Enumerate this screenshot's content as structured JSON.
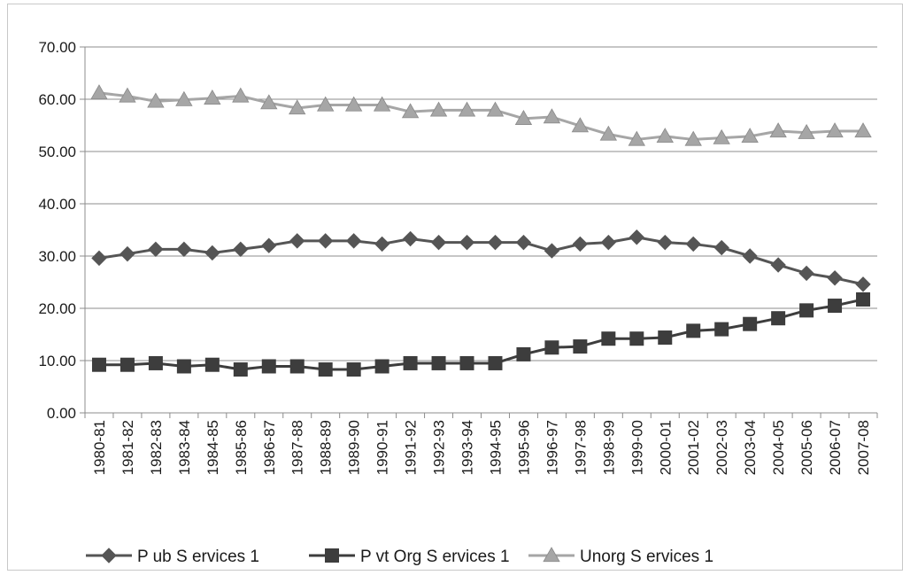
{
  "chart_data": {
    "type": "line",
    "categories": [
      "1980-81",
      "1981-82",
      "1982-83",
      "1983-84",
      "1984-85",
      "1985-86",
      "1986-87",
      "1987-88",
      "1988-89",
      "1989-90",
      "1990-91",
      "1991-92",
      "1992-93",
      "1993-94",
      "1994-95",
      "1995-96",
      "1996-97",
      "1997-98",
      "1998-99",
      "1999-00",
      "2000-01",
      "2001-02",
      "2002-03",
      "2003-04",
      "2004-05",
      "2005-06",
      "2006-07",
      "2007-08"
    ],
    "ylim": [
      0,
      70
    ],
    "yticks": [
      "0.00",
      "10.00",
      "20.00",
      "30.00",
      "40.00",
      "50.00",
      "60.00",
      "70.00"
    ],
    "grid": true,
    "legend_position": "bottom",
    "series": [
      {
        "name": "P ub S ervices 1",
        "marker": "diamond",
        "color": "#555555",
        "values": [
          29.6,
          30.4,
          31.3,
          31.3,
          30.6,
          31.3,
          32.0,
          32.9,
          32.9,
          32.9,
          32.3,
          33.3,
          32.6,
          32.6,
          32.6,
          32.6,
          31.0,
          32.3,
          32.6,
          33.6,
          32.6,
          32.3,
          31.6,
          30.0,
          28.3,
          26.7,
          25.8,
          24.6
        ]
      },
      {
        "name": "P vt Org S ervices 1",
        "marker": "square",
        "color": "#3d3d3d",
        "values": [
          9.2,
          9.2,
          9.5,
          8.9,
          9.2,
          8.3,
          8.9,
          8.9,
          8.3,
          8.3,
          8.9,
          9.5,
          9.5,
          9.5,
          9.5,
          11.2,
          12.5,
          12.7,
          14.2,
          14.2,
          14.4,
          15.7,
          16.0,
          17.0,
          18.1,
          19.6,
          20.5,
          21.7
        ]
      },
      {
        "name": "Unorg S ervices 1",
        "marker": "triangle",
        "color": "#a6a6a6",
        "values": [
          61.2,
          60.6,
          59.6,
          59.9,
          60.2,
          60.6,
          59.3,
          58.3,
          58.9,
          58.9,
          58.9,
          57.6,
          57.9,
          57.9,
          57.9,
          56.3,
          56.6,
          54.9,
          53.3,
          52.3,
          52.9,
          52.3,
          52.6,
          52.9,
          53.9,
          53.6,
          53.9,
          53.9
        ]
      }
    ]
  }
}
